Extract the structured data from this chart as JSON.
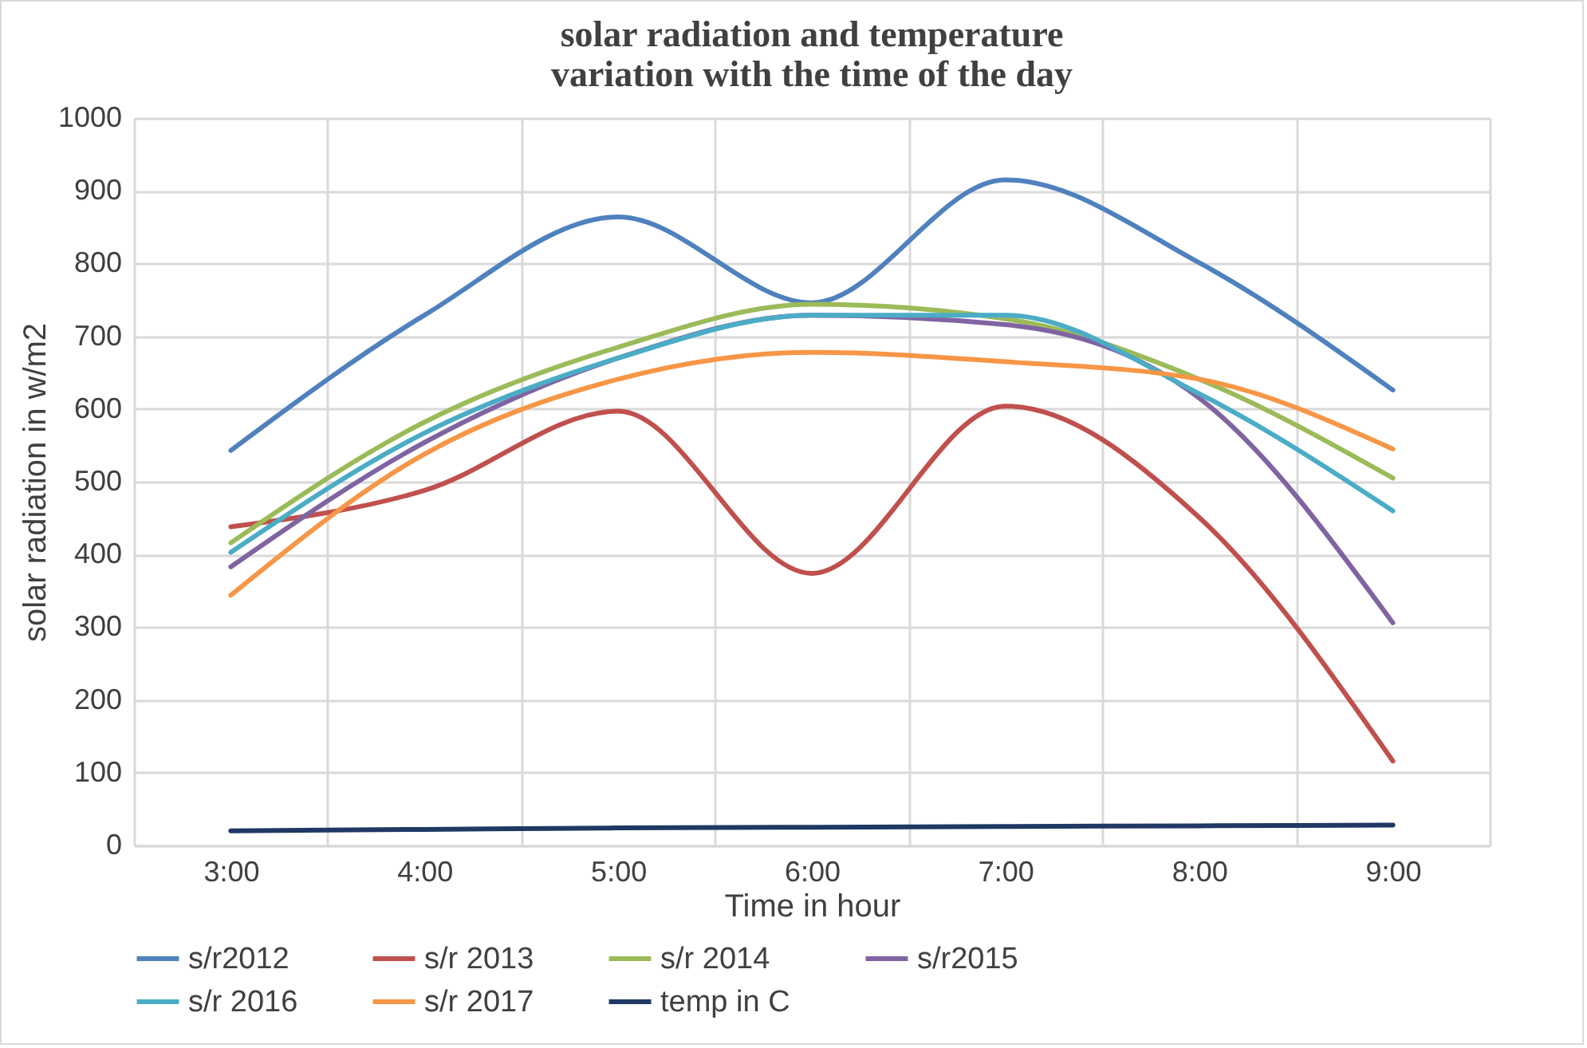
{
  "chart_data": {
    "type": "line",
    "title": "solar radiation and temperature variation with the time of the day",
    "xlabel": "Time in hour",
    "ylabel": "solar radiation in w/m2",
    "categories": [
      "3:00",
      "4:00",
      "5:00",
      "6:00",
      "7:00",
      "8:00",
      "9:00"
    ],
    "series": [
      {
        "name": "s/r2012",
        "color": "#4f81bd",
        "values": [
          543,
          729,
          864,
          746,
          915,
          801,
          626
        ]
      },
      {
        "name": "s/r 2013",
        "color": "#c0504d",
        "values": [
          438,
          488,
          597,
          374,
          604,
          451,
          116
        ]
      },
      {
        "name": "s/r 2014",
        "color": "#9bbb59",
        "values": [
          416,
          582,
          685,
          744,
          724,
          641,
          505
        ]
      },
      {
        "name": "s/r2015",
        "color": "#8064a2",
        "values": [
          383,
          554,
          670,
          729,
          716,
          615,
          306
        ]
      },
      {
        "name": "s/r 2016",
        "color": "#4bacc6",
        "values": [
          403,
          567,
          670,
          729,
          729,
          621,
          460
        ]
      },
      {
        "name": "s/r 2017",
        "color": "#f79646",
        "values": [
          344,
          538,
          641,
          678,
          665,
          641,
          545
        ]
      },
      {
        "name": "temp in C",
        "color": "#1f3864",
        "values": [
          20,
          22,
          24,
          25,
          26,
          27,
          28
        ]
      }
    ],
    "ylim": [
      0,
      1000
    ],
    "yticks": [
      0,
      100,
      200,
      300,
      400,
      500,
      600,
      700,
      800,
      900,
      1000
    ],
    "grid": true,
    "legend": "bottom",
    "marker": "none",
    "line_style": "solid"
  }
}
